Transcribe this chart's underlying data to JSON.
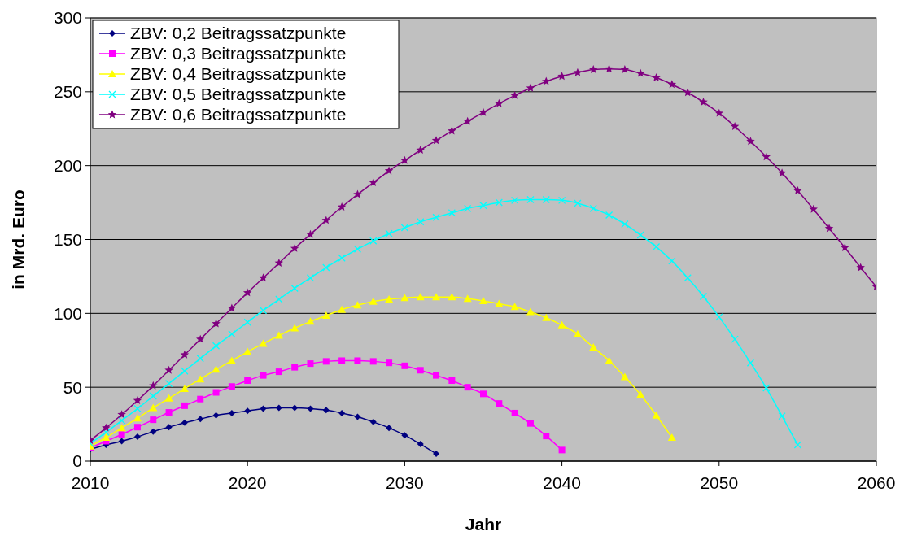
{
  "chart_data": {
    "type": "line",
    "xlabel": "Jahr",
    "ylabel": "in Mrd. Euro",
    "xlim": [
      2010,
      2060
    ],
    "xticks": [
      2010,
      2020,
      2030,
      2040,
      2050,
      2060
    ],
    "ylim": [
      0,
      300
    ],
    "yticks": [
      0,
      50,
      100,
      150,
      200,
      250,
      300
    ],
    "grid": "y",
    "legend": "top left",
    "line_style": "solid",
    "series": [
      {
        "name": "ZBV: 0,2 Beitragssatzpunkte",
        "color": "#000080",
        "marker": "diamond",
        "x": [
          2010,
          2011,
          2012,
          2013,
          2014,
          2015,
          2016,
          2017,
          2018,
          2019,
          2020,
          2021,
          2022,
          2023,
          2024,
          2025,
          2026,
          2027,
          2028,
          2029,
          2030,
          2031,
          2032
        ],
        "values": [
          8,
          11,
          13.5,
          16.5,
          20,
          23,
          26,
          28.5,
          31,
          32.5,
          34,
          35.5,
          36,
          36,
          35.5,
          34.5,
          32.5,
          30,
          26.5,
          22.5,
          17.5,
          11.5,
          5
        ]
      },
      {
        "name": "ZBV: 0,3 Beitragssatzpunkte",
        "color": "#ff00ff",
        "marker": "square",
        "x": [
          2010,
          2011,
          2012,
          2013,
          2014,
          2015,
          2016,
          2017,
          2018,
          2019,
          2020,
          2021,
          2022,
          2023,
          2024,
          2025,
          2026,
          2027,
          2028,
          2029,
          2030,
          2031,
          2032,
          2033,
          2034,
          2035,
          2036,
          2037,
          2038,
          2039,
          2040
        ],
        "values": [
          9,
          13.5,
          18,
          23,
          28,
          33,
          37.5,
          42,
          46.5,
          50.5,
          54.5,
          58,
          60.5,
          63.5,
          66,
          67.5,
          68,
          68,
          67.5,
          66.5,
          64.5,
          61.5,
          58,
          54.5,
          50,
          45.5,
          39,
          32.5,
          25.5,
          17,
          7.5
        ]
      },
      {
        "name": "ZBV: 0,4 Beitragssatzpunkte",
        "color": "#ffff00",
        "marker": "triangle",
        "x": [
          2010,
          2011,
          2012,
          2013,
          2014,
          2015,
          2016,
          2017,
          2018,
          2019,
          2020,
          2021,
          2022,
          2023,
          2024,
          2025,
          2026,
          2027,
          2028,
          2029,
          2030,
          2031,
          2032,
          2033,
          2034,
          2035,
          2036,
          2037,
          2038,
          2039,
          2040,
          2041,
          2042,
          2043,
          2044,
          2045,
          2046,
          2047
        ],
        "values": [
          10,
          16,
          22.5,
          29,
          36,
          42.5,
          49,
          55.5,
          62,
          68,
          74,
          79.5,
          85,
          90,
          94.5,
          98.5,
          102.5,
          105.5,
          108,
          109.5,
          110.5,
          111,
          111,
          111,
          110,
          108.5,
          106.5,
          104.5,
          101,
          97,
          92,
          86,
          77,
          68,
          57,
          45,
          31,
          16
        ]
      },
      {
        "name": "ZBV: 0,5 Beitragssatzpunkte",
        "color": "#00ffff",
        "marker": "cross",
        "x": [
          2010,
          2011,
          2012,
          2013,
          2014,
          2015,
          2016,
          2017,
          2018,
          2019,
          2020,
          2021,
          2022,
          2023,
          2024,
          2025,
          2026,
          2027,
          2028,
          2029,
          2030,
          2031,
          2032,
          2033,
          2034,
          2035,
          2036,
          2037,
          2038,
          2039,
          2040,
          2041,
          2042,
          2043,
          2044,
          2045,
          2046,
          2047,
          2048,
          2049,
          2050,
          2051,
          2052,
          2053,
          2054,
          2055
        ],
        "values": [
          12,
          19.5,
          27.5,
          35.5,
          44,
          52.5,
          61,
          69.5,
          78,
          86,
          94,
          102,
          109.5,
          117,
          124,
          131,
          137.5,
          143.5,
          149,
          154,
          158,
          162,
          165,
          168,
          171,
          173,
          175,
          176.5,
          177,
          177,
          176.5,
          174.5,
          171,
          166.5,
          160.5,
          153,
          145,
          135.5,
          124,
          111.5,
          97.5,
          82.5,
          66.5,
          49.5,
          30.5,
          11
        ]
      },
      {
        "name": "ZBV: 0,6 Beitragssatzpunkte",
        "color": "#800080",
        "marker": "star",
        "x": [
          2010,
          2011,
          2012,
          2013,
          2014,
          2015,
          2016,
          2017,
          2018,
          2019,
          2020,
          2021,
          2022,
          2023,
          2024,
          2025,
          2026,
          2027,
          2028,
          2029,
          2030,
          2031,
          2032,
          2033,
          2034,
          2035,
          2036,
          2037,
          2038,
          2039,
          2040,
          2041,
          2042,
          2043,
          2044,
          2045,
          2046,
          2047,
          2048,
          2049,
          2050,
          2051,
          2052,
          2053,
          2054,
          2055,
          2056,
          2057,
          2058,
          2059,
          2060
        ],
        "values": [
          14,
          22.5,
          31.5,
          41,
          51,
          61.5,
          72,
          82.5,
          93,
          103.5,
          114,
          124,
          134,
          144,
          153.5,
          163,
          172,
          180.5,
          188.5,
          196.5,
          203.5,
          210.5,
          217,
          223.5,
          230,
          236,
          242,
          247.5,
          252.5,
          257,
          260.5,
          263,
          265,
          265.5,
          265,
          262.5,
          259.5,
          255,
          249.5,
          243,
          235.5,
          226.5,
          216.5,
          206,
          195,
          183,
          170.5,
          157.5,
          144.5,
          131,
          118
        ]
      }
    ]
  }
}
